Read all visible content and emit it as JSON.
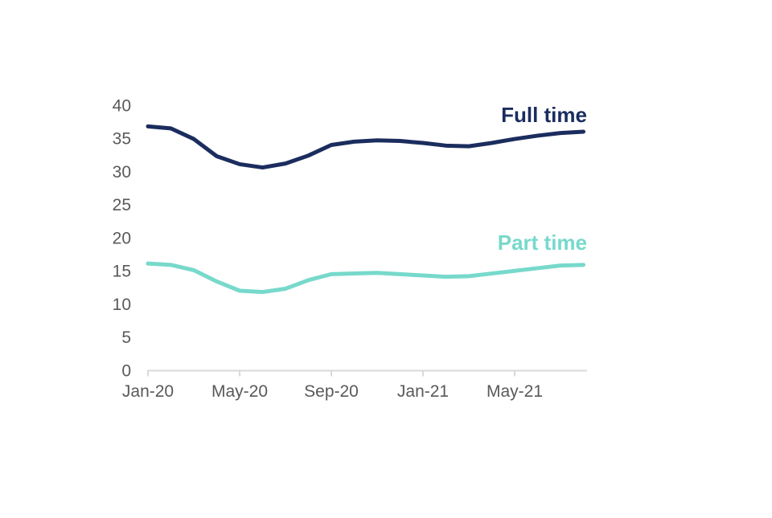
{
  "chart_data": {
    "type": "line",
    "title": "",
    "xlabel": "",
    "ylabel": "",
    "x": [
      "Jan-20",
      "Feb-20",
      "Mar-20",
      "Apr-20",
      "May-20",
      "Jun-20",
      "Jul-20",
      "Aug-20",
      "Sep-20",
      "Oct-20",
      "Nov-20",
      "Dec-20",
      "Jan-21",
      "Feb-21",
      "Mar-21",
      "Apr-21",
      "May-21",
      "Jun-21",
      "Jul-21",
      "Aug-21"
    ],
    "x_tick_labels": [
      "Jan-20",
      "May-20",
      "Sep-20",
      "Jan-21",
      "May-21"
    ],
    "y_ticks": [
      0,
      5,
      10,
      15,
      20,
      25,
      30,
      35,
      40
    ],
    "ylim": [
      0,
      40
    ],
    "grid": false,
    "legend_position": "end-of-line-labels",
    "series": [
      {
        "name": "Full time",
        "color": "#1b2d5e",
        "values": [
          36.8,
          36.5,
          34.9,
          32.3,
          31.1,
          30.6,
          31.2,
          32.4,
          34.0,
          34.5,
          34.7,
          34.6,
          34.3,
          33.9,
          33.8,
          34.3,
          34.9,
          35.4,
          35.8,
          36.0
        ]
      },
      {
        "name": "Part time",
        "color": "#77d9cb",
        "values": [
          16.1,
          15.9,
          15.1,
          13.4,
          12.0,
          11.8,
          12.3,
          13.6,
          14.5,
          14.6,
          14.7,
          14.5,
          14.3,
          14.1,
          14.2,
          14.6,
          15.0,
          15.4,
          15.8,
          15.9
        ]
      }
    ],
    "colors": {
      "axis_line": "#d9d9d9",
      "tick_label": "#595959",
      "background": "#ffffff"
    }
  }
}
